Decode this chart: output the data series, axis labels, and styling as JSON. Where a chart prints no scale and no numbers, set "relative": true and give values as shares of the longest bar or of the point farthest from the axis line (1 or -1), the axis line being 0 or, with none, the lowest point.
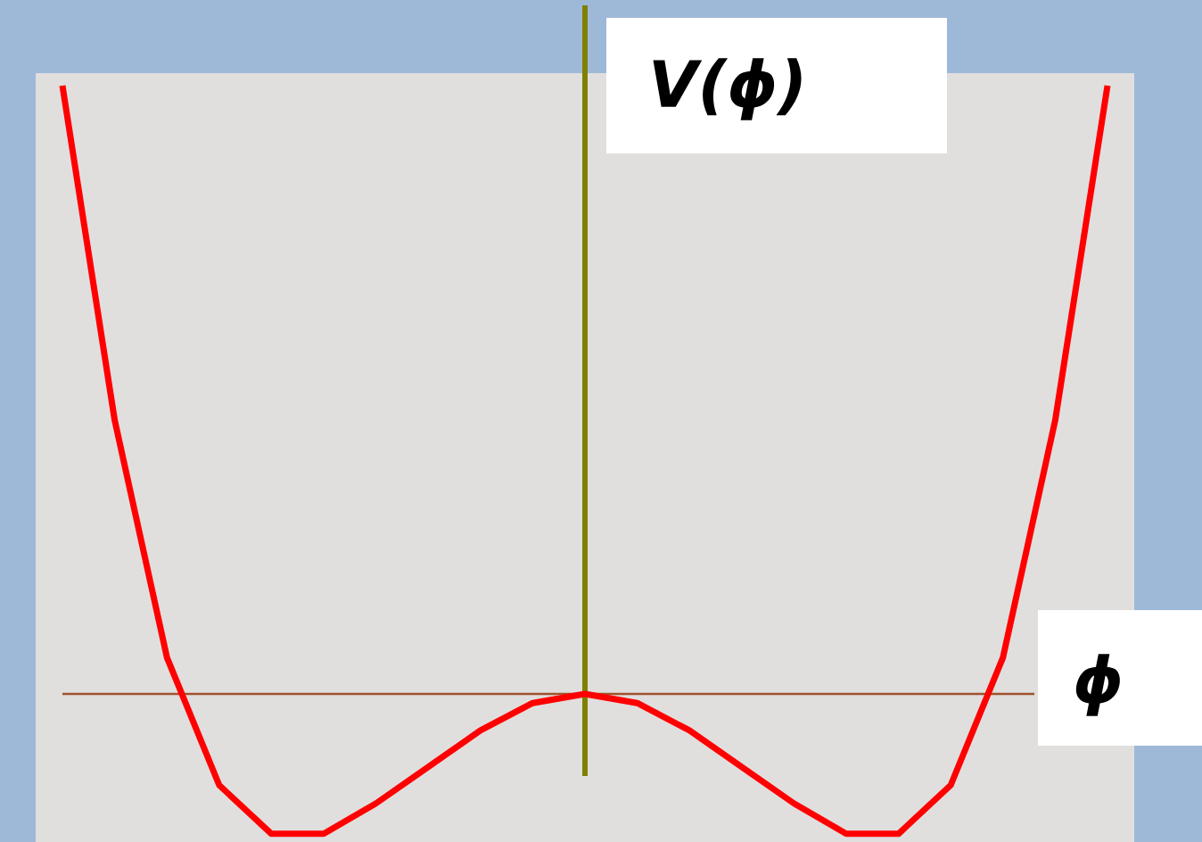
{
  "chart_data": {
    "type": "line",
    "relative": true,
    "xlabel": "ϕ",
    "ref_lines": [
      {
        "axis": "y",
        "value": 0,
        "color": "#a0522d"
      }
    ],
    "ylabel": "V(ϕ)",
    "color": "#ff0000",
    "categories": [
      null,
      null,
      null,
      null,
      null,
      null,
      null,
      null,
      null,
      null,
      null,
      null,
      null,
      null,
      null,
      null,
      null,
      null,
      null,
      null,
      null
    ],
    "values": [
      1.0,
      0.45,
      0.06,
      -0.15,
      -0.23,
      -0.23,
      -0.18,
      -0.12,
      -0.06,
      -0.015,
      0,
      -0.015,
      -0.06,
      -0.12,
      -0.18,
      -0.23,
      -0.23,
      -0.15,
      0.06,
      0.45,
      1.0
    ]
  }
}
